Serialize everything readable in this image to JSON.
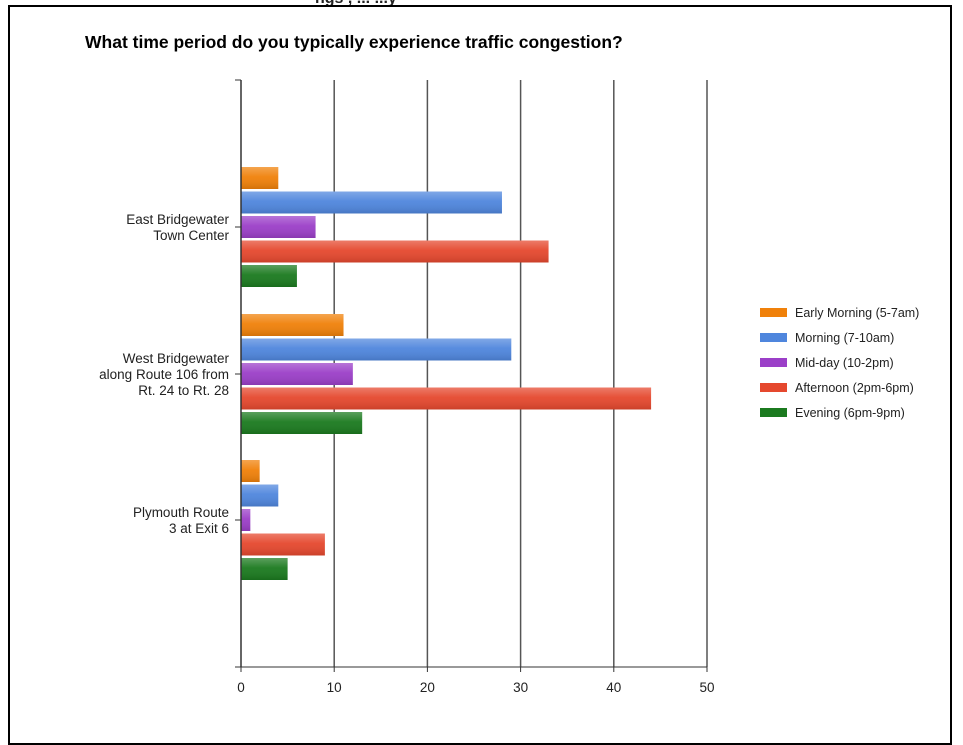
{
  "page": {
    "top_text": "ngs , ... ...y"
  },
  "chart_data": {
    "type": "bar",
    "orientation": "horizontal",
    "title": "What time period do you typically experience traffic congestion?",
    "xlabel": "",
    "ylabel": "",
    "xlim": [
      0,
      50
    ],
    "x_ticks": [
      0,
      10,
      20,
      30,
      40,
      50
    ],
    "grid": true,
    "legend_position": "right",
    "categories": [
      [
        "East Bridgewater",
        "Town Center"
      ],
      [
        "West Bridgewater",
        "along Route 106 from",
        "Rt. 24 to Rt. 28"
      ],
      [
        "Plymouth Route",
        "3 at Exit 6"
      ]
    ],
    "series": [
      {
        "name": "Early Morning (5-7am)",
        "color": "#F0810A",
        "values": [
          4,
          11,
          2
        ]
      },
      {
        "name": "Morning (7-10am)",
        "color": "#4F86DD",
        "values": [
          28,
          29,
          4
        ]
      },
      {
        "name": "Mid-day (10-2pm)",
        "color": "#9B3FC8",
        "values": [
          8,
          12,
          1
        ]
      },
      {
        "name": "Afternoon (2pm-6pm)",
        "color": "#E5482E",
        "values": [
          33,
          44,
          9
        ]
      },
      {
        "name": "Evening (6pm-9pm)",
        "color": "#1B7A1F",
        "values": [
          6,
          13,
          5
        ]
      }
    ]
  }
}
